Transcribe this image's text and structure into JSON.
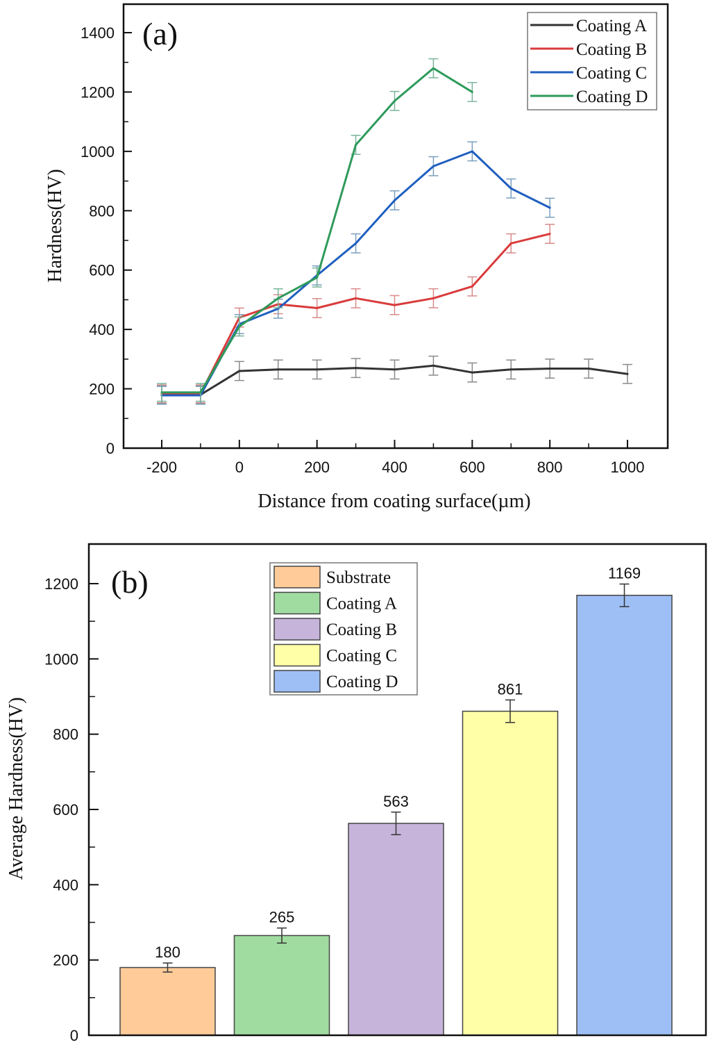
{
  "chart_data": [
    {
      "type": "line",
      "panel_label": "(a)",
      "title": "",
      "xlabel": "Distance from coating surface(µm)",
      "ylabel": "Hardness(HV)",
      "xlim": [
        -300,
        1100
      ],
      "ylim": [
        0,
        1500
      ],
      "xticks": [
        -200,
        0,
        200,
        400,
        600,
        800,
        1000
      ],
      "xtick_labels": [
        "-200",
        "0",
        "200",
        "400",
        "600",
        "800",
        "1000"
      ],
      "yticks": [
        0,
        200,
        400,
        600,
        800,
        1000,
        1200,
        1400
      ],
      "ytick_labels": [
        "0",
        "200",
        "400",
        "600",
        "800",
        "1000",
        "1200",
        "1400"
      ],
      "grid": false,
      "legend_position": "top-right",
      "series": [
        {
          "name": "Coating A",
          "color": "#333333",
          "error_color": "#8a8a8a",
          "x": [
            -200,
            -100,
            0,
            100,
            200,
            300,
            400,
            500,
            600,
            700,
            800,
            900,
            1000
          ],
          "y": [
            180,
            180,
            260,
            265,
            265,
            270,
            265,
            278,
            255,
            265,
            268,
            268,
            250
          ],
          "error": [
            30,
            30,
            32,
            32,
            32,
            32,
            32,
            32,
            32,
            32,
            32,
            32,
            32
          ]
        },
        {
          "name": "Coating B",
          "color": "#d93b3b",
          "error_color": "#d98a8a",
          "x": [
            -200,
            -100,
            0,
            100,
            200,
            300,
            400,
            500,
            600,
            700,
            800
          ],
          "y": [
            183,
            183,
            440,
            485,
            472,
            505,
            482,
            505,
            545,
            690,
            722
          ],
          "error": [
            30,
            30,
            32,
            32,
            32,
            32,
            32,
            32,
            32,
            32,
            32
          ]
        },
        {
          "name": "Coating C",
          "color": "#1f5fbf",
          "error_color": "#7a9fbf",
          "x": [
            -200,
            -100,
            0,
            100,
            200,
            300,
            400,
            500,
            600,
            700,
            800
          ],
          "y": [
            178,
            178,
            418,
            470,
            582,
            690,
            835,
            950,
            1000,
            875,
            810
          ],
          "error": [
            30,
            30,
            32,
            32,
            32,
            32,
            32,
            32,
            32,
            32,
            32
          ]
        },
        {
          "name": "Coating D",
          "color": "#2e9a5b",
          "error_color": "#7ab39a",
          "x": [
            -200,
            -100,
            0,
            100,
            200,
            300,
            400,
            500,
            600
          ],
          "y": [
            188,
            188,
            410,
            505,
            575,
            1022,
            1170,
            1280,
            1200
          ],
          "error": [
            30,
            30,
            32,
            32,
            32,
            32,
            32,
            32,
            32
          ]
        }
      ]
    },
    {
      "type": "bar",
      "panel_label": "(b)",
      "title": "",
      "xlabel": "",
      "ylabel": "Average Hardness(HV)",
      "ylim": [
        0,
        1300
      ],
      "yticks": [
        0,
        200,
        400,
        600,
        800,
        1000,
        1200
      ],
      "ytick_labels": [
        "0",
        "200",
        "400",
        "600",
        "800",
        "1000",
        "1200"
      ],
      "grid": false,
      "legend_position": "top-center",
      "categories": [
        "Substrate",
        "Coating A",
        "Coating B",
        "Coating C",
        "Coating D"
      ],
      "values": [
        180,
        265,
        563,
        861,
        1169
      ],
      "value_labels": [
        "180",
        "265",
        "563",
        "861",
        "1169"
      ],
      "errors": [
        12,
        20,
        30,
        30,
        30
      ],
      "colors": [
        "#ffcc99",
        "#a0dca0",
        "#c6b4da",
        "#ffffa8",
        "#9ebff5"
      ]
    }
  ]
}
